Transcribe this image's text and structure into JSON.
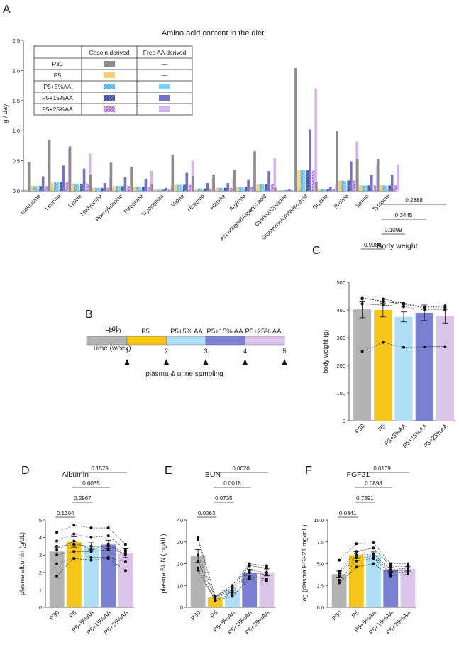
{
  "panel_letters": {
    "a": "A",
    "b": "B",
    "c": "C",
    "d": "D",
    "e": "E",
    "f": "F"
  },
  "colors": {
    "P30": "#b3b3b3",
    "P5": "#f5c518",
    "P5+5%AA": "#aedff7",
    "P5+15%AA": "#7b7fd1",
    "P5+25%AA": "#dcc5ea",
    "A_casein": "#8c8c8c",
    "A_P5": "#f5cf72",
    "A_5": "#7fd3f2",
    "A_15": "#6f74c9",
    "A_25": "#d9b3ee",
    "hatch5": "#2f7fbf",
    "hatch15": "#1a1a5e",
    "hatch25": "#8a2cb5",
    "axis": "#333333"
  },
  "chart_data": [
    {
      "id": "A",
      "type": "bar",
      "title": "Amino acid content in the diet",
      "ylabel": "g / day",
      "xlabel": "",
      "ylim": [
        0,
        2.5
      ],
      "yticks": [
        0.0,
        0.5,
        1.0,
        1.5,
        2.0,
        2.5
      ],
      "ytick_labels": [
        "0.0",
        "0.5",
        "1.0",
        "1.5",
        "2.0",
        "2.5"
      ],
      "categories": [
        "Isoleucine",
        "Leucine",
        "Lysine",
        "Methionine",
        "Phenylalanine",
        "Threonine",
        "Tryptophan",
        "Valine",
        "Histidine",
        "Alanine",
        "Arginine",
        "Asparagine/Aspartic acid",
        "Cystine/Cysteine",
        "Glutamine/Glutamic acid",
        "Glycine",
        "Proline",
        "Serine",
        "Tyrosine"
      ],
      "series": [
        {
          "name": "P30",
          "source": "Casein derived",
          "values": [
            0.48,
            0.85,
            0.74,
            0.27,
            0.47,
            0.4,
            0.11,
            0.6,
            0.25,
            0.27,
            0.35,
            0.66,
            0.05,
            2.04,
            0.15,
            0.99,
            0.53,
            0.53
          ]
        },
        {
          "name": "P5",
          "source": "Casein derived",
          "values": [
            0.08,
            0.14,
            0.12,
            0.05,
            0.08,
            0.07,
            0.02,
            0.1,
            0.04,
            0.05,
            0.06,
            0.11,
            0.01,
            0.34,
            0.03,
            0.17,
            0.09,
            0.09
          ]
        },
        {
          "name": "P5+5%AA",
          "casein": [
            0.08,
            0.14,
            0.12,
            0.05,
            0.08,
            0.07,
            0.02,
            0.1,
            0.04,
            0.05,
            0.06,
            0.11,
            0.01,
            0.34,
            0.03,
            0.17,
            0.09,
            0.09
          ],
          "free": [
            0.08,
            0.14,
            0.12,
            0.05,
            0.08,
            0.07,
            0.02,
            0.1,
            0.04,
            0.05,
            0.06,
            0.11,
            0.01,
            0.34,
            0.03,
            0.16,
            0.09,
            0.09
          ]
        },
        {
          "name": "P5+15%AA",
          "casein": [
            0.08,
            0.14,
            0.12,
            0.05,
            0.08,
            0.07,
            0.02,
            0.1,
            0.04,
            0.05,
            0.06,
            0.11,
            0.01,
            0.34,
            0.03,
            0.17,
            0.09,
            0.09
          ],
          "free": [
            0.24,
            0.42,
            0.37,
            0.13,
            0.23,
            0.2,
            0.05,
            0.3,
            0.13,
            0.13,
            0.18,
            0.33,
            0.03,
            1.02,
            0.07,
            0.49,
            0.27,
            0.27
          ]
        },
        {
          "name": "P5+25%AA",
          "casein": [
            0.08,
            0.14,
            0.12,
            0.05,
            0.08,
            0.07,
            0.02,
            0.1,
            0.04,
            0.05,
            0.06,
            0.11,
            0.01,
            0.34,
            0.03,
            0.17,
            0.09,
            0.09
          ],
          "free": [
            0.4,
            0.71,
            0.62,
            0.22,
            0.39,
            0.33,
            0.09,
            0.5,
            0.21,
            0.22,
            0.29,
            0.55,
            0.04,
            1.7,
            0.12,
            0.82,
            0.44,
            0.44
          ]
        }
      ],
      "legend": {
        "placement": "top-left",
        "headers": [
          "",
          "Casein derived",
          "Free AA derived"
        ],
        "rows": [
          {
            "label": "P30",
            "casein": "solid-dark",
            "free": "—"
          },
          {
            "label": "P5",
            "casein": "solid-yellow",
            "free": "—"
          },
          {
            "label": "P5+5%AA",
            "casein": "hatch-blue",
            "free": "solid-lightblue"
          },
          {
            "label": "P5+15%AA",
            "casein": "hatch-navy",
            "free": "solid-indigo"
          },
          {
            "label": "P5+25%AA",
            "casein": "hatch-purple",
            "free": "solid-lilac"
          }
        ]
      }
    },
    {
      "id": "B",
      "type": "timeline",
      "row_labels": {
        "diet": "Diet",
        "time": "Time (week)"
      },
      "segments": [
        "P30",
        "P5",
        "P5+5% AA",
        "P5+15% AA",
        "P5+25% AA"
      ],
      "weeks": [
        "1",
        "2",
        "3",
        "4",
        "5"
      ],
      "caption": "plasma & urine sampling"
    },
    {
      "id": "C",
      "type": "bar",
      "title": "Body weight",
      "ylabel": "body weight (g)",
      "xlabel": "",
      "ylim": [
        0,
        500
      ],
      "yticks": [
        0,
        100,
        200,
        300,
        400,
        500
      ],
      "ytick_labels": [
        "0",
        "100",
        "200",
        "300",
        "400",
        "500"
      ],
      "categories": [
        "P30",
        "P5",
        "P5+5%AA",
        "P5+15%AA",
        "P5+25%AA"
      ],
      "values": [
        402,
        400,
        375,
        390,
        378
      ],
      "sem": [
        30,
        25,
        18,
        28,
        25
      ],
      "individuals": [
        [
          440,
          440,
          425,
          410,
          410
        ],
        [
          445,
          430,
          425,
          405,
          400
        ],
        [
          442,
          432,
          420,
          410,
          415
        ],
        [
          422,
          418,
          412,
          400,
          405
        ],
        [
          250,
          283,
          265,
          267,
          268
        ]
      ],
      "comparisons": [
        {
          "from": 0,
          "to": 1,
          "p": "0.9986"
        },
        {
          "from": 1,
          "to": 2,
          "p": "0.1099"
        },
        {
          "from": 1,
          "to": 3,
          "p": "0.3445"
        },
        {
          "from": 1,
          "to": 4,
          "p": "0.2888"
        }
      ]
    },
    {
      "id": "D",
      "type": "bar",
      "title": "Albumin",
      "ylabel": "plasma albumin (g/dL)",
      "xlabel": "",
      "ylim": [
        0,
        5
      ],
      "yticks": [
        0,
        1,
        2,
        3,
        4,
        5
      ],
      "ytick_labels": [
        "0",
        "1",
        "2",
        "3",
        "4",
        "5"
      ],
      "categories": [
        "P30",
        "P5",
        "P5+5%AA",
        "P5+15%AA",
        "P5+25%AA"
      ],
      "values": [
        3.2,
        3.75,
        3.5,
        3.6,
        3.1
      ],
      "sem": [
        0.25,
        0.3,
        0.2,
        0.25,
        0.25
      ],
      "individuals": [
        [
          4.3,
          4.7,
          4.55,
          4.55,
          3.6
        ],
        [
          3.8,
          4.2,
          4.0,
          4.1,
          3.3
        ],
        [
          3.5,
          3.6,
          3.5,
          3.5,
          3.2
        ],
        [
          3.3,
          3.8,
          3.3,
          3.6,
          3.0
        ],
        [
          3.0,
          3.2,
          3.2,
          3.3,
          3.1
        ],
        [
          2.5,
          2.8,
          2.85,
          2.85,
          2.6
        ],
        [
          1.8,
          2.8,
          2.7,
          2.8,
          2.1
        ]
      ],
      "comparisons": [
        {
          "from": 0,
          "to": 1,
          "p": "0.1304"
        },
        {
          "from": 1,
          "to": 2,
          "p": "0.2967"
        },
        {
          "from": 1,
          "to": 3,
          "p": "0.6035"
        },
        {
          "from": 1,
          "to": 4,
          "p": "0.1579"
        }
      ]
    },
    {
      "id": "E",
      "type": "bar",
      "title": "BUN",
      "ylabel": "plasma BUN (mg/dL)",
      "xlabel": "",
      "ylim": [
        0,
        40
      ],
      "yticks": [
        0,
        10,
        20,
        30,
        40
      ],
      "ytick_labels": [
        "0",
        "10",
        "20",
        "30",
        "40"
      ],
      "categories": [
        "P30",
        "P5",
        "P5+5%AA",
        "P5+15%AA",
        "P5+25%AA"
      ],
      "values": [
        23.5,
        4.5,
        8,
        16,
        16
      ],
      "sem": [
        3,
        0.7,
        1.2,
        1.3,
        1.6
      ],
      "individuals": [
        [
          32,
          5,
          10,
          20,
          19
        ],
        [
          31,
          5,
          9,
          19,
          18
        ],
        [
          24,
          4.8,
          8,
          17,
          16
        ],
        [
          21,
          4.5,
          7,
          16,
          15
        ],
        [
          18,
          3.5,
          6,
          14,
          13
        ],
        [
          17,
          3,
          5,
          13,
          12
        ]
      ],
      "comparisons": [
        {
          "from": 0,
          "to": 1,
          "p": "0.0063"
        },
        {
          "from": 1,
          "to": 2,
          "p": "0.0735"
        },
        {
          "from": 1,
          "to": 3,
          "p": "0.0018"
        },
        {
          "from": 1,
          "to": 4,
          "p": "0.0020"
        }
      ]
    },
    {
      "id": "F",
      "type": "bar",
      "title": "FGF21",
      "ylabel": "log (plasma FGF21 mg/mL)",
      "xlabel": "",
      "ylim": [
        0,
        10
      ],
      "yticks": [
        0,
        2.5,
        5,
        7.5,
        10
      ],
      "ytick_labels": [
        "0.0",
        "2.5",
        "5.0",
        "7.5",
        "10.0"
      ],
      "categories": [
        "P30",
        "P5",
        "P5+5%AA",
        "P5+15%AA",
        "P5+25%AA"
      ],
      "values": [
        3.8,
        6.0,
        6.0,
        4.3,
        4.4
      ],
      "sem": [
        0.35,
        0.4,
        0.35,
        0.25,
        0.25
      ],
      "individuals": [
        [
          5.4,
          7.3,
          7.4,
          5.0,
          5.0
        ],
        [
          4.1,
          6.4,
          6.8,
          4.7,
          4.7
        ],
        [
          3.9,
          6.0,
          6.1,
          4.3,
          4.5
        ],
        [
          3.6,
          5.7,
          5.8,
          4.1,
          4.3
        ],
        [
          3.1,
          5.3,
          5.6,
          3.9,
          4.1
        ],
        [
          2.8,
          4.6,
          5.0,
          3.6,
          3.8
        ]
      ],
      "comparisons": [
        {
          "from": 0,
          "to": 1,
          "p": "0.0341"
        },
        {
          "from": 1,
          "to": 2,
          "p": "0.7591"
        },
        {
          "from": 1,
          "to": 3,
          "p": "0.0898"
        },
        {
          "from": 1,
          "to": 4,
          "p": "0.0169"
        }
      ]
    }
  ]
}
